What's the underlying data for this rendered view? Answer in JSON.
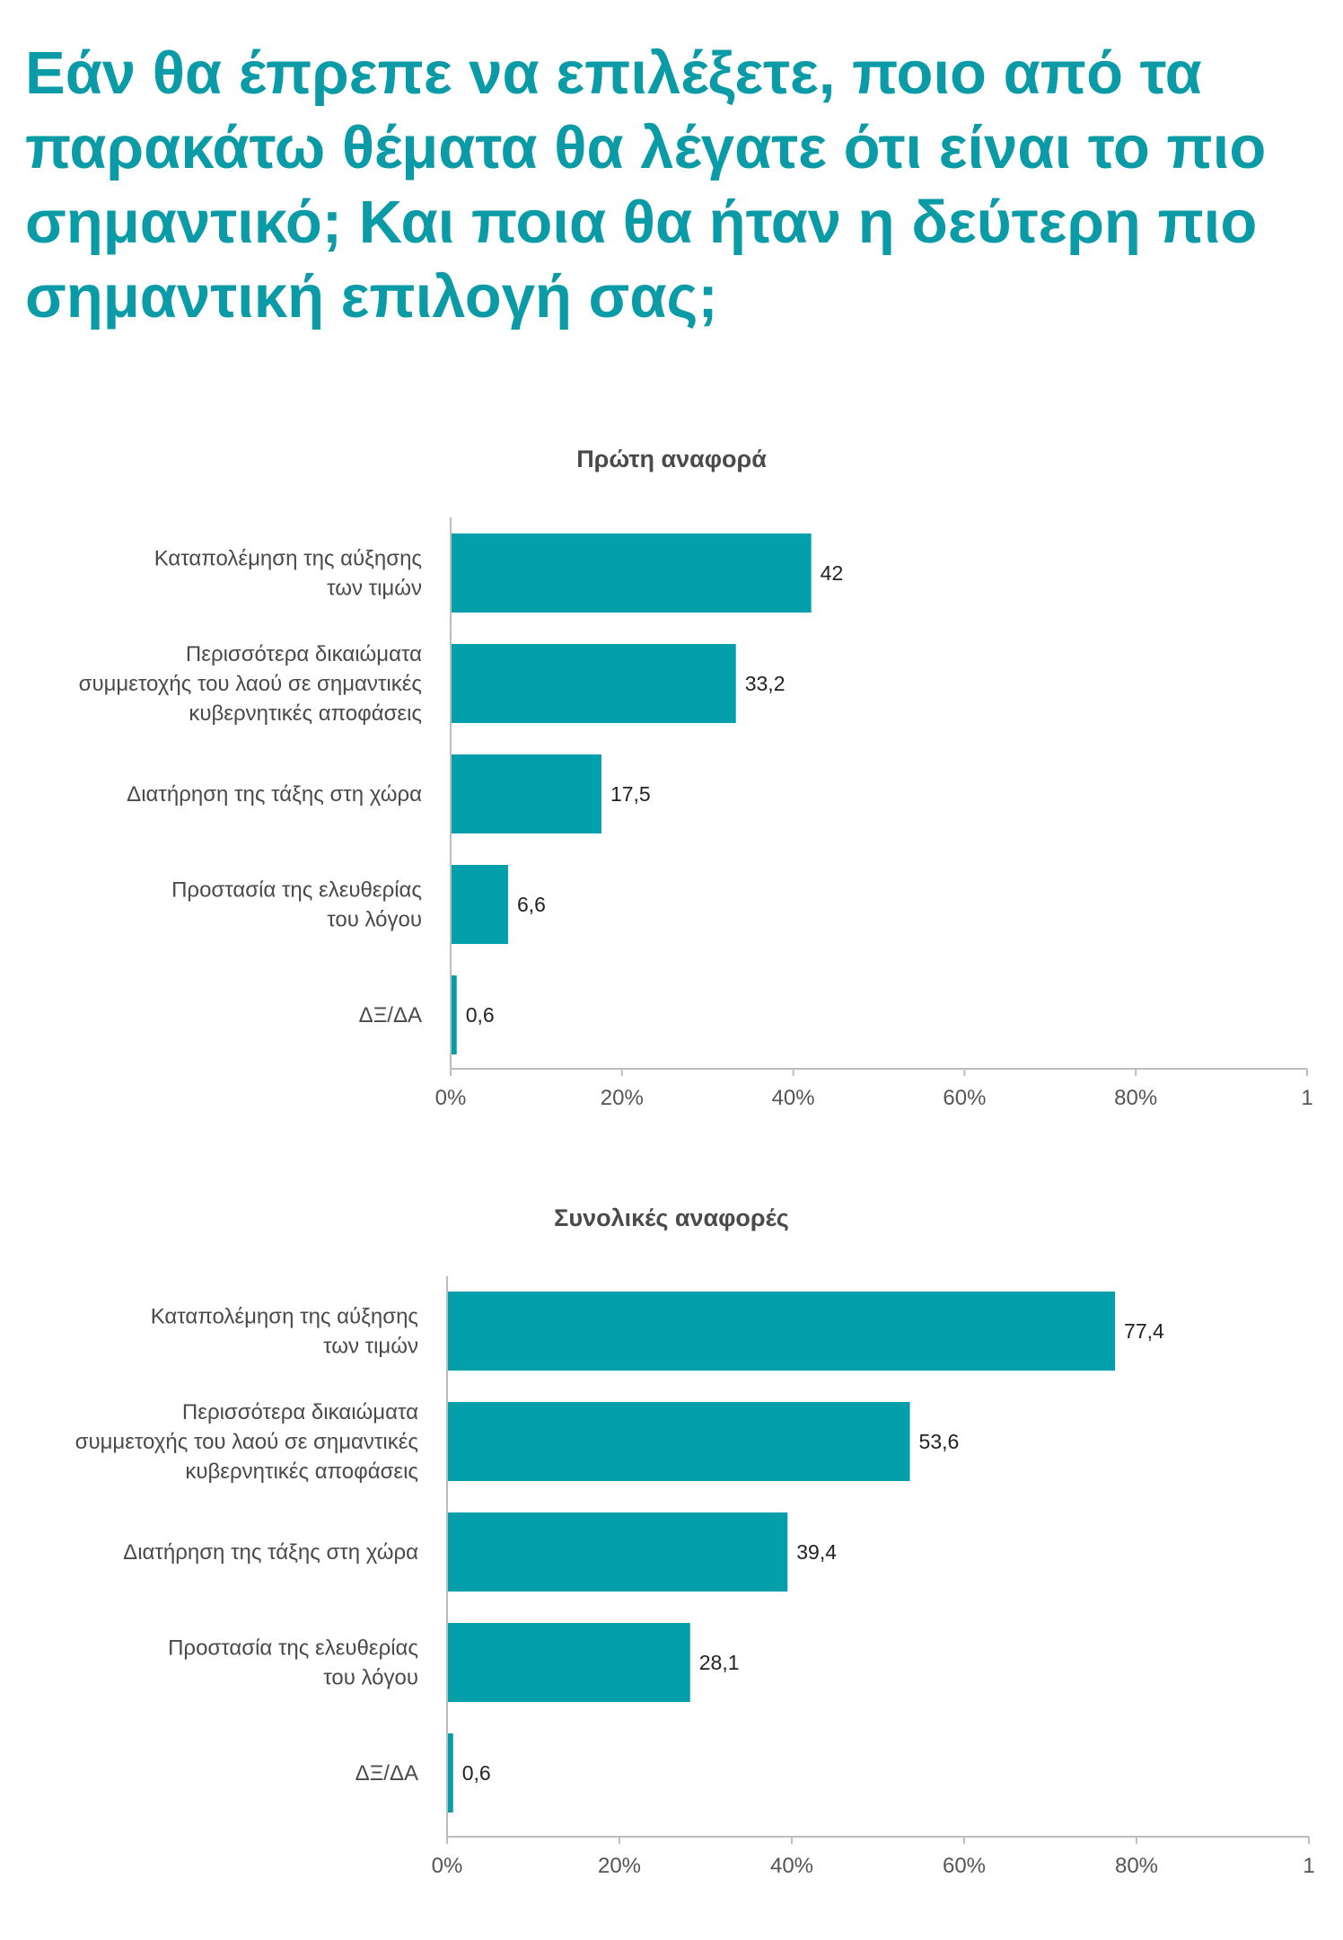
{
  "page": {
    "title": "Εάν θα έπρεπε να επιλέξετε, ποιο από τα παρακάτω θέματα θα λέγατε ότι είναι το πιο σημαντικό; Και ποια θα ήταν η δεύτερη πιο σημαντική επιλογή σας;"
  },
  "colors": {
    "accent": "#0a9ba7",
    "bar": "#03a0ac",
    "axis": "#bdbdbd"
  },
  "chart_data": [
    {
      "type": "bar",
      "orientation": "horizontal",
      "title": "Πρώτη αναφορά",
      "categories": [
        [
          "Καταπολέμηση της αύξησης",
          "των τιμών"
        ],
        [
          "Περισσότερα δικαιώματα",
          "συμμετοχής του λαού σε σημαντικές",
          "κυβερνητικές αποφάσεις"
        ],
        [
          "Διατήρηση της τάξης στη χώρα"
        ],
        [
          "Προστασία της ελευθερίας",
          "του λόγου"
        ],
        [
          "ΔΞ/ΔΑ"
        ]
      ],
      "values": [
        42,
        33.2,
        17.5,
        6.6,
        0.6
      ],
      "value_labels": [
        "42",
        "33,2",
        "17,5",
        "6,6",
        "0,6"
      ],
      "xlim": [
        0,
        100
      ],
      "ticks": [
        "0%",
        "20%",
        "40%",
        "60%",
        "80%",
        "1"
      ],
      "grid": false
    },
    {
      "type": "bar",
      "orientation": "horizontal",
      "title": "Συνολικές αναφορές",
      "categories": [
        [
          "Καταπολέμηση της αύξησης",
          "των τιμών"
        ],
        [
          "Περισσότερα δικαιώματα",
          "συμμετοχής του λαού σε σημαντικές",
          "κυβερνητικές αποφάσεις"
        ],
        [
          "Διατήρηση της τάξης στη χώρα"
        ],
        [
          "Προστασία της ελευθερίας",
          "του λόγου"
        ],
        [
          "ΔΞ/ΔΑ"
        ]
      ],
      "values": [
        77.4,
        53.6,
        39.4,
        28.1,
        0.6
      ],
      "value_labels": [
        "77,4",
        "53,6",
        "39,4",
        "28,1",
        "0,6"
      ],
      "xlim": [
        0,
        100
      ],
      "ticks": [
        "0%",
        "20%",
        "40%",
        "60%",
        "80%",
        "1"
      ],
      "grid": false
    }
  ]
}
